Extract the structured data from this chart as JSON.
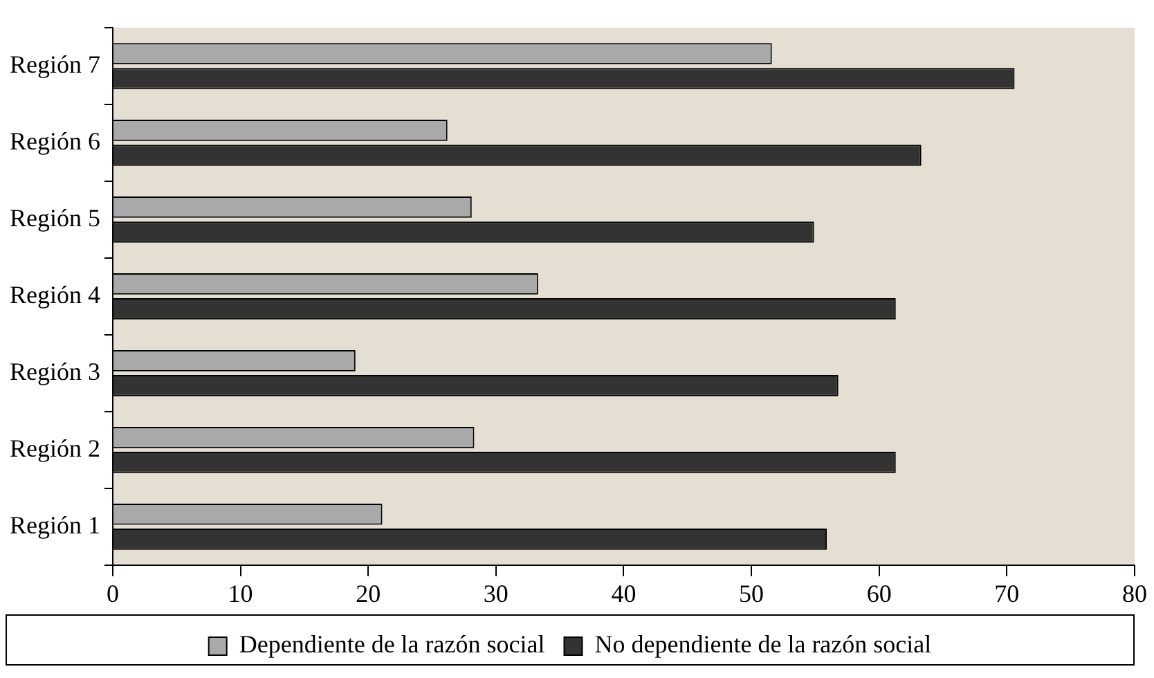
{
  "chart_data": {
    "type": "bar",
    "orientation": "horizontal",
    "categories": [
      "Región 7",
      "Región 6",
      "Región 5",
      "Región 4",
      "Región 3",
      "Región 2",
      "Región 1"
    ],
    "series": [
      {
        "name": "Dependiente de la razón social",
        "color": "#a9a9a9",
        "values": [
          51.6,
          26.2,
          28.1,
          33.3,
          19.0,
          28.3,
          21.1
        ]
      },
      {
        "name": "No dependiente de la razón social",
        "color": "#333333",
        "values": [
          70.6,
          63.3,
          54.9,
          61.3,
          56.8,
          61.3,
          55.9
        ]
      }
    ],
    "xlim": [
      0,
      80
    ],
    "xticks": [
      0,
      10,
      20,
      30,
      40,
      50,
      60,
      70,
      80
    ],
    "grid": false,
    "legend": "bottom"
  }
}
